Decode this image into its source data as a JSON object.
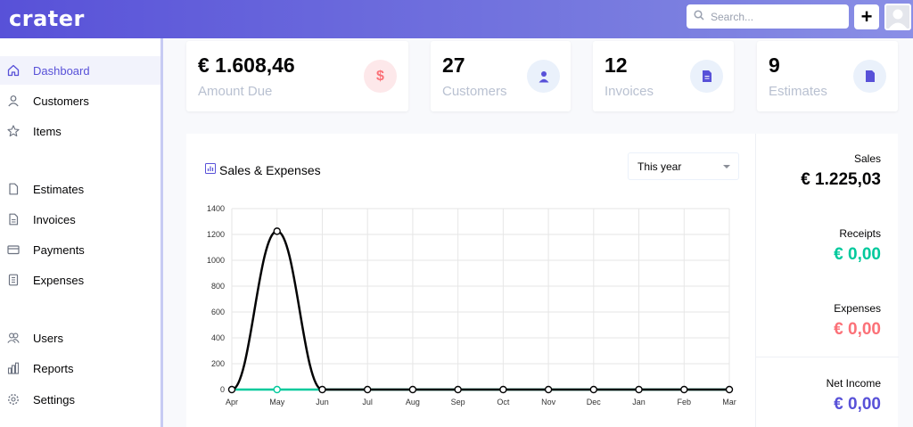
{
  "header": {
    "logo": "crater",
    "search_placeholder": "Search...",
    "add_label": "+"
  },
  "sidebar": {
    "items": [
      {
        "label": "Dashboard",
        "icon": "home-icon",
        "active": true
      },
      {
        "label": "Customers",
        "icon": "user-icon"
      },
      {
        "label": "Items",
        "icon": "star-icon"
      },
      {
        "label": "Estimates",
        "icon": "document-icon"
      },
      {
        "label": "Invoices",
        "icon": "document-text-icon"
      },
      {
        "label": "Payments",
        "icon": "credit-card-icon"
      },
      {
        "label": "Expenses",
        "icon": "receipt-icon"
      },
      {
        "label": "Users",
        "icon": "users-icon"
      },
      {
        "label": "Reports",
        "icon": "chart-bar-icon"
      },
      {
        "label": "Settings",
        "icon": "cog-icon"
      }
    ]
  },
  "cards": {
    "amount_due": {
      "value": "€ 1.608,46",
      "label": "Amount Due",
      "icon": "dollar-icon"
    },
    "customers": {
      "value": "27",
      "label": "Customers",
      "icon": "user-icon"
    },
    "invoices": {
      "value": "12",
      "label": "Invoices",
      "icon": "document-text-icon"
    },
    "estimates": {
      "value": "9",
      "label": "Estimates",
      "icon": "document-icon"
    }
  },
  "chart": {
    "title": "Sales & Expenses",
    "period": "This year"
  },
  "chart_data": {
    "type": "line",
    "categories": [
      "Apr",
      "May",
      "Jun",
      "Jul",
      "Aug",
      "Sep",
      "Oct",
      "Nov",
      "Dec",
      "Jan",
      "Feb",
      "Mar"
    ],
    "series": [
      {
        "values": [
          0,
          1225.03,
          0,
          0,
          0,
          0,
          0,
          0,
          0,
          0,
          0,
          0
        ],
        "color": "#040405"
      },
      {
        "values": [
          0,
          0,
          0,
          0,
          0,
          0,
          0,
          0,
          0,
          0,
          0,
          0
        ],
        "color": "#00c99c"
      }
    ],
    "yticks": [
      0,
      200,
      400,
      600,
      800,
      1000,
      1200,
      1400
    ],
    "ylim": [
      0,
      1400
    ],
    "grid": true
  },
  "stats": {
    "sales": {
      "label": "Sales",
      "value": "€ 1.225,03",
      "color": "#040405"
    },
    "receipts": {
      "label": "Receipts",
      "value": "€ 0,00",
      "color": "#00c99c"
    },
    "expenses": {
      "label": "Expenses",
      "value": "€ 0,00",
      "color": "#fb7178"
    },
    "net_income": {
      "label": "Net Income",
      "value": "€ 0,00",
      "color": "#5851d8"
    }
  },
  "colors": {
    "primary": "#5851d8",
    "success": "#00c99c",
    "danger": "#fb7178"
  }
}
